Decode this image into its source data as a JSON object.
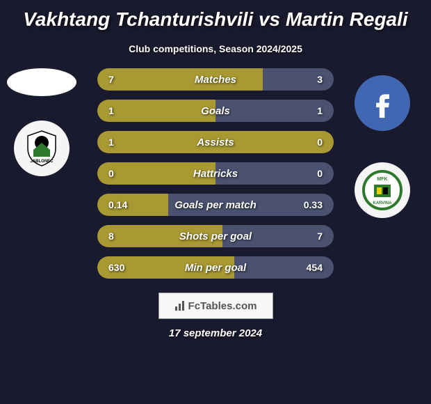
{
  "title": "Vakhtang Tchanturishvili vs Martin Regali",
  "subtitle": "Club competitions, Season 2024/2025",
  "date": "17 september 2024",
  "watermark": "FcTables.com",
  "colors": {
    "background": "#1a1a2e",
    "bar_track": "#4a5270",
    "bar_fill": "#a89932",
    "text": "#ffffff"
  },
  "bars": [
    {
      "label": "Matches",
      "left": "7",
      "right": "3",
      "left_pct": 70,
      "right_pct": 30
    },
    {
      "label": "Goals",
      "left": "1",
      "right": "1",
      "left_pct": 50,
      "right_pct": 50
    },
    {
      "label": "Assists",
      "left": "1",
      "right": "0",
      "left_pct": 100,
      "right_pct": 0
    },
    {
      "label": "Hattricks",
      "left": "0",
      "right": "0",
      "left_pct": 50,
      "right_pct": 50
    },
    {
      "label": "Goals per match",
      "left": "0.14",
      "right": "0.33",
      "left_pct": 30,
      "right_pct": 70
    },
    {
      "label": "Shots per goal",
      "left": "8",
      "right": "7",
      "left_pct": 53,
      "right_pct": 47
    },
    {
      "label": "Min per goal",
      "left": "630",
      "right": "454",
      "left_pct": 58,
      "right_pct": 42
    }
  ],
  "left_club": {
    "name": "FK Jablonec",
    "color1": "#2d7a2d",
    "color2": "#000"
  },
  "right_club": {
    "name": "MFK Karvina",
    "color1": "#2d7a2d",
    "color2": "#e8d000"
  },
  "social": {
    "name": "facebook",
    "color": "#4267B2"
  }
}
